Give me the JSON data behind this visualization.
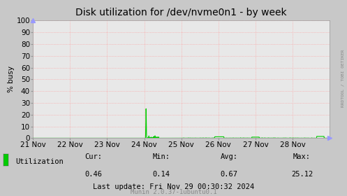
{
  "title": "Disk utilization for /dev/nvme0n1 - by week",
  "ylabel": "% busy",
  "background_color": "#c8c8c8",
  "plot_bg_color": "#e8e8e8",
  "grid_color": "#ff9999",
  "line_color": "#00cc00",
  "ylim": [
    0,
    100
  ],
  "yticks": [
    0,
    10,
    20,
    30,
    40,
    50,
    60,
    70,
    80,
    90,
    100
  ],
  "xtick_labels": [
    "21 Nov",
    "22 Nov",
    "23 Nov",
    "24 Nov",
    "25 Nov",
    "26 Nov",
    "27 Nov",
    "28 Nov"
  ],
  "right_label": "RRDTOOL / TOBI OETIKER",
  "legend_label": "Utilization",
  "cur_val": "0.46",
  "min_val": "0.14",
  "avg_val": "0.67",
  "max_val": "25.12",
  "last_update": "Last update: Fri Nov 29 00:30:32 2024",
  "munin_label": "Munin 2.0.37-1ubuntu0.1",
  "title_fontsize": 10,
  "axis_fontsize": 7.5,
  "small_fontsize": 6.5
}
